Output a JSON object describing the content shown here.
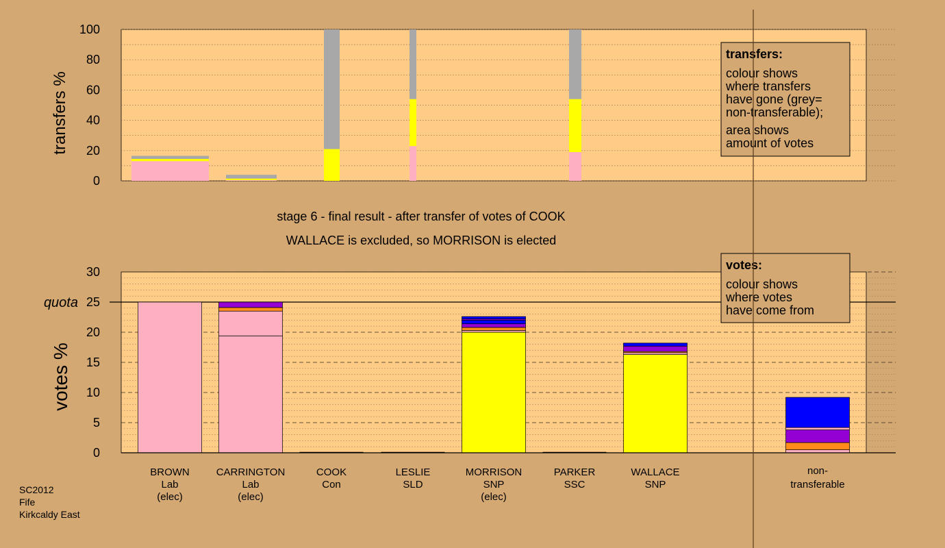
{
  "colors": {
    "page_bg": "#d4a873",
    "plot_bg": "#ffcc88",
    "Lab": "#ffb0c0",
    "SNP": "#ffff00",
    "Con": "#0000ff",
    "SLD": "#ff8c1a",
    "SSC": "#9400d3",
    "nontransferable": "#a8a8a8"
  },
  "headings": {
    "stage": "stage 6 - final result - after transfer of votes of COOK",
    "outcome": "WALLACE is excluded, so MORRISON is elected"
  },
  "legend_transfers": {
    "title": "transfers:",
    "lines": [
      "colour shows",
      "where transfers",
      "have gone (grey=",
      "non-transferable);",
      "area shows",
      "amount of votes"
    ]
  },
  "legend_votes": {
    "title": "votes:",
    "lines": [
      "colour shows",
      "where votes",
      "have come from"
    ]
  },
  "footer": {
    "lines": [
      "SC2012",
      "Fife",
      "Kirkcaldy East"
    ]
  },
  "chart_data": [
    {
      "type": "bar",
      "stacked": true,
      "ylabel": "transfers %",
      "ylim": [
        0,
        100
      ],
      "yticks": [
        0,
        20,
        40,
        60,
        80,
        100
      ],
      "grid": "dotted horizontal",
      "note": "bar width proportional to amount of votes transferred",
      "bars": [
        {
          "candidate": "BROWN",
          "segments": [
            {
              "party": "Lab",
              "value": 13
            },
            {
              "party": "SNP",
              "value": 1.5
            },
            {
              "party": "nontransferable",
              "value": 2
            }
          ]
        },
        {
          "candidate": "CARRINGTON",
          "segments": [
            {
              "party": "Lab",
              "value": 0.5
            },
            {
              "party": "SNP",
              "value": 1
            },
            {
              "party": "nontransferable",
              "value": 2.5
            }
          ]
        },
        {
          "candidate": "COOK",
          "segments": [
            {
              "party": "SNP",
              "value": 21
            },
            {
              "party": "nontransferable",
              "value": 79
            }
          ]
        },
        {
          "candidate": "LESLIE",
          "segments": [
            {
              "party": "Lab",
              "value": 23
            },
            {
              "party": "SNP",
              "value": 31
            },
            {
              "party": "nontransferable",
              "value": 46
            }
          ]
        },
        {
          "candidate": "PARKER",
          "segments": [
            {
              "party": "Lab",
              "value": 19
            },
            {
              "party": "SNP",
              "value": 35
            },
            {
              "party": "nontransferable",
              "value": 46
            }
          ]
        }
      ]
    },
    {
      "type": "bar",
      "stacked": true,
      "ylabel": "votes %",
      "ylim": [
        0,
        30
      ],
      "yticks": [
        0,
        5,
        10,
        15,
        20,
        25,
        30
      ],
      "quota": {
        "label": "quota",
        "value": 25
      },
      "grid": "dashed horizontal",
      "categories": [
        {
          "name": "BROWN",
          "party": "Lab",
          "status": "(elec)"
        },
        {
          "name": "CARRINGTON",
          "party": "Lab",
          "status": "(elec)"
        },
        {
          "name": "COOK",
          "party": "Con",
          "status": ""
        },
        {
          "name": "LESLIE",
          "party": "SLD",
          "status": ""
        },
        {
          "name": "MORRISON",
          "party": "SNP",
          "status": "(elec)"
        },
        {
          "name": "PARKER",
          "party": "SSC",
          "status": ""
        },
        {
          "name": "WALLACE",
          "party": "SNP",
          "status": ""
        }
      ],
      "nontransferable_label": [
        "non-",
        "transferable"
      ],
      "bars": [
        {
          "candidate": "BROWN",
          "segments": [
            {
              "party": "Lab",
              "value": 25
            }
          ]
        },
        {
          "candidate": "CARRINGTON",
          "segments": [
            {
              "party": "Lab",
              "value": 19.4
            },
            {
              "party": "Lab",
              "value": 4.1
            },
            {
              "party": "SLD",
              "value": 0.6
            },
            {
              "party": "SSC",
              "value": 0.9
            }
          ]
        },
        {
          "candidate": "COOK",
          "segments": []
        },
        {
          "candidate": "LESLIE",
          "segments": []
        },
        {
          "candidate": "MORRISON",
          "segments": [
            {
              "party": "SNP",
              "value": 20
            },
            {
              "party": "Lab",
              "value": 0.3
            },
            {
              "party": "SLD",
              "value": 0.5
            },
            {
              "party": "SSC",
              "value": 0.6
            },
            {
              "party": "Con",
              "value": 0.6
            },
            {
              "party": "SSC",
              "value": 0.2
            },
            {
              "party": "Con",
              "value": 0.4
            }
          ]
        },
        {
          "candidate": "PARKER",
          "segments": []
        },
        {
          "candidate": "WALLACE",
          "segments": [
            {
              "party": "SNP",
              "value": 16.3
            },
            {
              "party": "Lab",
              "value": 0.3
            },
            {
              "party": "SLD",
              "value": 0.2
            },
            {
              "party": "SSC",
              "value": 0.9
            },
            {
              "party": "Con",
              "value": 0.5
            }
          ]
        },
        {
          "candidate": "non-transferable",
          "segments": [
            {
              "party": "Lab",
              "value": 0.5
            },
            {
              "party": "SLD",
              "value": 1.2
            },
            {
              "party": "SSC",
              "value": 2.1
            },
            {
              "party": "Lab",
              "value": 0.4
            },
            {
              "party": "Con",
              "value": 5
            }
          ]
        }
      ]
    }
  ]
}
